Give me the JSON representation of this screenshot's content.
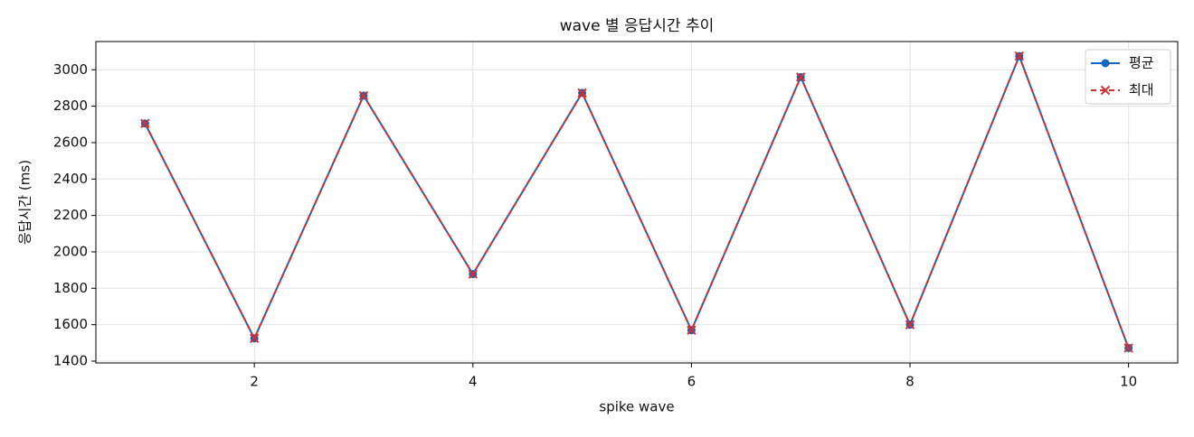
{
  "chart_data": {
    "type": "line",
    "title": "wave 별 응답시간 추이",
    "x_label": "spike wave",
    "y_label": "응답시간 (ms)",
    "x": [
      1,
      2,
      3,
      4,
      5,
      6,
      7,
      8,
      9,
      10
    ],
    "series": [
      {
        "name": "평균",
        "color": "#1565c0",
        "marker": "circle",
        "dash": false,
        "values": [
          2705,
          1525,
          2858,
          1878,
          2873,
          1570,
          2960,
          1600,
          3075,
          1472
        ]
      },
      {
        "name": "최대",
        "color": "#d32f2f",
        "marker": "x",
        "dash": true,
        "values": [
          2705,
          1525,
          2858,
          1878,
          2873,
          1570,
          2960,
          1600,
          3075,
          1472
        ]
      }
    ],
    "xlim": [
      0.55,
      10.45
    ],
    "xticks": [
      2,
      4,
      6,
      8,
      10
    ],
    "ylim": [
      1390,
      3155
    ],
    "yticks": [
      1400,
      1600,
      1800,
      2000,
      2200,
      2400,
      2600,
      2800,
      3000
    ],
    "grid": true,
    "legend": "upper right"
  }
}
